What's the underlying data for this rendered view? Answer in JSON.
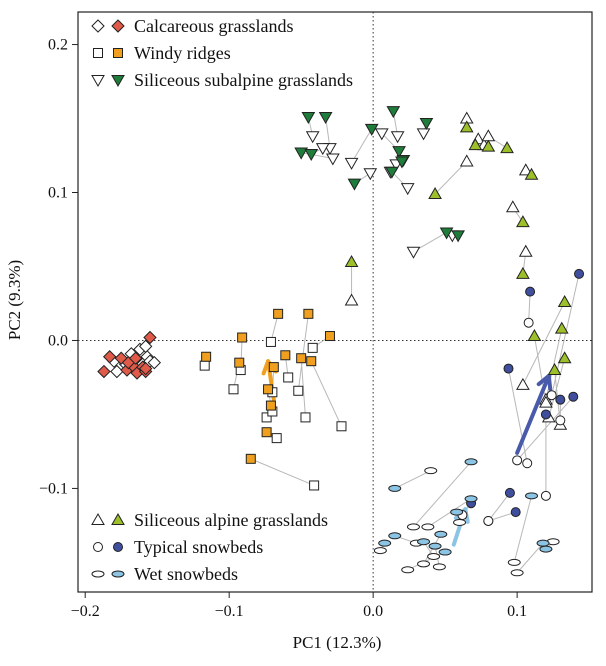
{
  "chart_data": {
    "type": "scatter",
    "title": "",
    "xlabel": "PC1 (12.3%)",
    "ylabel": "PC2 (9.3%)",
    "xlim": [
      -0.205,
      0.152
    ],
    "ylim": [
      -0.17,
      0.222
    ],
    "x_ticks": [
      -0.2,
      -0.1,
      0.0,
      0.1
    ],
    "x_tick_labels": [
      "−0.2",
      "−0.1",
      "0.0",
      "0.1"
    ],
    "y_ticks": [
      -0.1,
      0.0,
      0.1,
      0.2
    ],
    "y_tick_labels": [
      "−0.1",
      "0.0",
      "0.1",
      "0.2"
    ],
    "reference_lines": {
      "x": 0,
      "y": 0,
      "style": "dotted"
    },
    "grid": false,
    "legend_top": [
      {
        "label": "Calcareous grasslands",
        "marker": "diamond",
        "color": "#e05a4a"
      },
      {
        "label": "Windy ridges",
        "marker": "square",
        "color": "#f0a01e"
      },
      {
        "label": "Siliceous subalpine grasslands",
        "marker": "triangle-down",
        "color": "#1e7d3a"
      }
    ],
    "legend_bottom": [
      {
        "label": "Siliceous alpine grasslands",
        "marker": "triangle-up",
        "color": "#9cbf2a"
      },
      {
        "label": "Typical snowbeds",
        "marker": "circle",
        "color": "#3f4f9e"
      },
      {
        "label": "Wet snowbeds",
        "marker": "ellipse",
        "color": "#8cc4e4"
      }
    ],
    "legend_placement": [
      "top-left",
      "bottom-left"
    ],
    "series": [
      {
        "name": "Calcareous grasslands",
        "marker": "diamond",
        "color": "#e05a4a",
        "pairs": [
          [
            [
              -0.18,
              -0.014
            ],
            [
              -0.183,
              -0.011
            ]
          ],
          [
            [
              -0.172,
              -0.016
            ],
            [
              -0.175,
              -0.012
            ]
          ],
          [
            [
              -0.168,
              -0.018
            ],
            [
              -0.171,
              -0.02
            ]
          ],
          [
            [
              -0.164,
              -0.013
            ],
            [
              -0.167,
              -0.017
            ]
          ],
          [
            [
              -0.16,
              -0.016
            ],
            [
              -0.164,
              -0.022
            ]
          ],
          [
            [
              -0.157,
              -0.011
            ],
            [
              -0.16,
              -0.018
            ]
          ],
          [
            [
              -0.155,
              -0.014
            ],
            [
              -0.158,
              -0.021
            ]
          ],
          [
            [
              -0.178,
              -0.021
            ],
            [
              -0.187,
              -0.021
            ]
          ],
          [
            [
              -0.168,
              -0.009
            ],
            [
              -0.17,
              -0.015
            ]
          ],
          [
            [
              -0.162,
              -0.006
            ],
            [
              -0.165,
              -0.012
            ]
          ],
          [
            [
              -0.158,
              -0.004
            ],
            [
              -0.155,
              0.002
            ]
          ],
          [
            [
              -0.152,
              -0.015
            ],
            [
              -0.158,
              -0.019
            ]
          ]
        ]
      },
      {
        "name": "Windy ridges",
        "marker": "square",
        "color": "#f0a01e",
        "pairs": [
          [
            [
              -0.117,
              -0.017
            ],
            [
              -0.116,
              -0.011
            ]
          ],
          [
            [
              -0.097,
              -0.033
            ],
            [
              -0.093,
              -0.015
            ]
          ],
          [
            [
              -0.092,
              -0.02
            ],
            [
              -0.091,
              0.002
            ]
          ],
          [
            [
              -0.071,
              -0.001
            ],
            [
              -0.066,
              0.018
            ]
          ],
          [
            [
              -0.074,
              -0.052
            ],
            [
              -0.071,
              -0.044
            ]
          ],
          [
            [
              -0.07,
              -0.048
            ],
            [
              -0.073,
              -0.033
            ]
          ],
          [
            [
              -0.07,
              -0.035
            ],
            [
              -0.069,
              -0.018
            ]
          ],
          [
            [
              -0.067,
              -0.066
            ],
            [
              -0.074,
              -0.062
            ]
          ],
          [
            [
              -0.059,
              -0.025
            ],
            [
              -0.061,
              -0.01
            ]
          ],
          [
            [
              -0.052,
              -0.034
            ],
            [
              -0.045,
              0.018
            ]
          ],
          [
            [
              -0.047,
              -0.052
            ],
            [
              -0.05,
              -0.012
            ]
          ],
          [
            [
              -0.041,
              -0.098
            ],
            [
              -0.085,
              -0.08
            ]
          ],
          [
            [
              -0.022,
              -0.058
            ],
            [
              -0.043,
              -0.014
            ]
          ],
          [
            [
              -0.042,
              -0.005
            ],
            [
              -0.03,
              0.003
            ]
          ]
        ]
      },
      {
        "name": "Siliceous subalpine grasslands",
        "marker": "triangle-down",
        "color": "#1e7d3a",
        "pairs": [
          [
            [
              -0.03,
              0.13
            ],
            [
              -0.033,
              0.151
            ]
          ],
          [
            [
              -0.042,
              0.138
            ],
            [
              -0.045,
              0.151
            ]
          ],
          [
            [
              -0.015,
              0.12
            ],
            [
              -0.001,
              0.143
            ]
          ],
          [
            [
              0.017,
              0.138
            ],
            [
              0.014,
              0.155
            ]
          ],
          [
            [
              -0.028,
              0.123
            ],
            [
              -0.05,
              0.127
            ]
          ],
          [
            [
              -0.035,
              0.13
            ],
            [
              -0.043,
              0.126
            ]
          ],
          [
            [
              0.006,
              0.14
            ],
            [
              0.018,
              0.128
            ]
          ],
          [
            [
              0.035,
              0.14
            ],
            [
              0.037,
              0.147
            ]
          ],
          [
            [
              0.012,
              0.114
            ],
            [
              0.021,
              0.122
            ]
          ],
          [
            [
              0.024,
              0.103
            ],
            [
              0.013,
              0.114
            ]
          ],
          [
            [
              -0.002,
              0.113
            ],
            [
              -0.013,
              0.106
            ]
          ],
          [
            [
              0.055,
              0.071
            ],
            [
              0.059,
              0.071
            ]
          ],
          [
            [
              0.028,
              0.06
            ],
            [
              0.051,
              0.073
            ]
          ],
          [
            [
              0.016,
              0.119
            ],
            [
              0.02,
              0.121
            ]
          ]
        ]
      },
      {
        "name": "Siliceous alpine grasslands",
        "marker": "triangle-up",
        "color": "#9cbf2a",
        "pairs": [
          [
            [
              0.065,
              0.15
            ],
            [
              0.065,
              0.144
            ]
          ],
          [
            [
              0.073,
              0.136
            ],
            [
              0.071,
              0.132
            ]
          ],
          [
            [
              0.077,
              0.132
            ],
            [
              0.08,
              0.131
            ]
          ],
          [
            [
              0.08,
              0.138
            ],
            [
              0.093,
              0.13
            ]
          ],
          [
            [
              0.065,
              0.121
            ],
            [
              0.043,
              0.099
            ]
          ],
          [
            [
              0.106,
              0.115
            ],
            [
              0.11,
              0.112
            ]
          ],
          [
            [
              0.097,
              0.09
            ],
            [
              0.104,
              0.08
            ]
          ],
          [
            [
              0.106,
              0.06
            ],
            [
              0.104,
              0.045
            ]
          ],
          [
            [
              -0.015,
              0.027
            ],
            [
              -0.015,
              0.053
            ]
          ],
          [
            [
              0.104,
              -0.03
            ],
            [
              0.133,
              0.026
            ]
          ],
          [
            [
              0.12,
              -0.04
            ],
            [
              0.131,
              0.008
            ]
          ],
          [
            [
              0.122,
              -0.052
            ],
            [
              0.133,
              -0.012
            ]
          ],
          [
            [
              0.13,
              -0.057
            ],
            [
              0.126,
              -0.02
            ]
          ],
          [
            [
              0.12,
              -0.042
            ],
            [
              0.112,
              0.003
            ]
          ]
        ]
      },
      {
        "name": "Typical snowbeds",
        "marker": "circle",
        "color": "#3f4f9e",
        "pairs": [
          [
            [
              0.107,
              -0.083
            ],
            [
              0.094,
              -0.019
            ]
          ],
          [
            [
              0.108,
              0.012
            ],
            [
              0.109,
              0.033
            ]
          ],
          [
            [
              0.12,
              -0.105
            ],
            [
              0.12,
              -0.05
            ]
          ],
          [
            [
              0.1,
              -0.081
            ],
            [
              0.139,
              -0.038
            ]
          ],
          [
            [
              0.062,
              -0.118
            ],
            [
              0.068,
              -0.11
            ]
          ],
          [
            [
              0.08,
              -0.122
            ],
            [
              0.095,
              -0.103
            ]
          ],
          [
            [
              0.08,
              -0.122
            ],
            [
              0.099,
              -0.116
            ]
          ],
          [
            [
              0.13,
              -0.054
            ],
            [
              0.13,
              -0.04
            ]
          ],
          [
            [
              0.124,
              -0.037
            ],
            [
              0.143,
              0.045
            ]
          ]
        ]
      },
      {
        "name": "Wet snowbeds",
        "marker": "ellipse",
        "color": "#8cc4e4",
        "pairs": [
          [
            [
              0.03,
              -0.137
            ],
            [
              0.015,
              -0.132
            ]
          ],
          [
            [
              0.038,
              -0.126
            ],
            [
              0.068,
              -0.107
            ]
          ],
          [
            [
              0.042,
              -0.146
            ],
            [
              0.035,
              -0.136
            ]
          ],
          [
            [
              0.035,
              -0.151
            ],
            [
              0.047,
              -0.131
            ]
          ],
          [
            [
              0.024,
              -0.155
            ],
            [
              0.05,
              -0.143
            ]
          ],
          [
            [
              0.046,
              -0.153
            ],
            [
              0.043,
              -0.139
            ]
          ],
          [
            [
              0.028,
              -0.126
            ],
            [
              0.068,
              -0.082
            ]
          ],
          [
            [
              0.06,
              -0.123
            ],
            [
              0.058,
              -0.116
            ]
          ],
          [
            [
              0.098,
              -0.15
            ],
            [
              0.11,
              -0.105
            ]
          ],
          [
            [
              0.1,
              -0.157
            ],
            [
              0.118,
              -0.137
            ]
          ],
          [
            [
              0.125,
              -0.136
            ],
            [
              0.12,
              -0.141
            ]
          ],
          [
            [
              0.04,
              -0.088
            ],
            [
              0.015,
              -0.1
            ]
          ],
          [
            [
              0.005,
              -0.142
            ],
            [
              0.008,
              -0.137
            ]
          ]
        ]
      }
    ],
    "arrows": [
      {
        "color": "#f0a01e",
        "from": [
          -0.069,
          -0.04
        ],
        "to": [
          -0.073,
          -0.014
        ]
      },
      {
        "color": "#4a5aaa",
        "from": [
          0.1,
          -0.076
        ],
        "to": [
          0.122,
          -0.024
        ]
      },
      {
        "color": "#8cc4e4",
        "from": [
          0.056,
          -0.138
        ],
        "to": [
          0.064,
          -0.114
        ]
      }
    ]
  }
}
